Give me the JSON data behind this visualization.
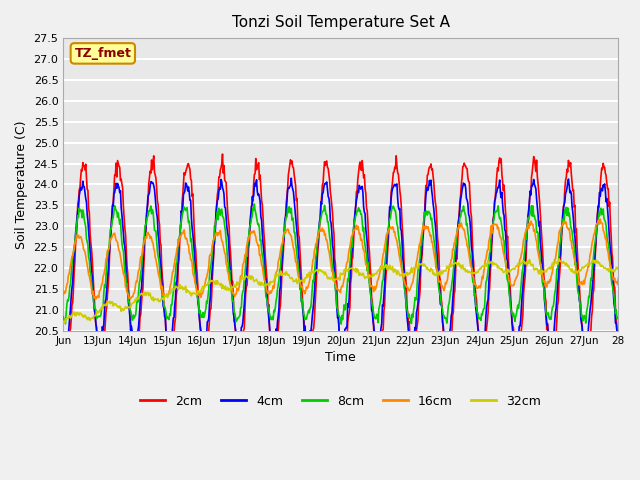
{
  "title": "Tonzi Soil Temperature Set A",
  "xlabel": "Time",
  "ylabel": "Soil Temperature (C)",
  "annotation": "TZ_fmet",
  "ylim": [
    20.5,
    27.5
  ],
  "colors": {
    "2cm": "#ff0000",
    "4cm": "#0000ff",
    "8cm": "#00cc00",
    "16cm": "#ff8800",
    "32cm": "#cccc00"
  },
  "legend_labels": [
    "2cm",
    "4cm",
    "8cm",
    "16cm",
    "32cm"
  ],
  "bg_color": "#e8e8e8",
  "grid_color": "#ffffff",
  "annotation_bg": "#ffff99",
  "annotation_border": "#cc8800",
  "x_tick_positions": [
    0,
    1,
    2,
    3,
    4,
    5,
    6,
    7,
    8,
    9,
    10,
    11,
    12,
    13,
    14,
    15,
    16
  ],
  "x_tick_labels": [
    "Jun",
    "13Jun",
    "14Jun",
    "15Jun",
    "16Jun",
    "17Jun",
    "18Jun",
    "19Jun",
    "20Jun",
    "21Jun",
    "22Jun",
    "23Jun",
    "24Jun",
    "25Jun",
    "26Jun",
    "27Jun",
    "28"
  ],
  "yticks": [
    20.5,
    21.0,
    21.5,
    22.0,
    22.5,
    23.0,
    23.5,
    24.0,
    24.5,
    25.0,
    25.5,
    26.0,
    26.5,
    27.0,
    27.5
  ]
}
